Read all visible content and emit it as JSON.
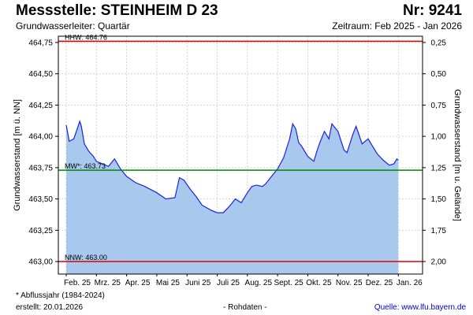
{
  "header": {
    "title": "Messstelle: STEINHEIM D 23",
    "number": "Nr: 9241",
    "subtitle": "Grundwasserleiter: Quartär",
    "period": "Zeitraum: Feb 2025 - Jan 2026"
  },
  "footer": {
    "note": "* Abflussjahr (1984-2024)",
    "created": "erstellt:  20.01.2026",
    "raw": "- Rohdaten -",
    "source": "Quelle:  www.lfu.bayern.de"
  },
  "colors": {
    "fill": "#a8c8ee",
    "line": "#1e22dc",
    "hhw": "#e00000",
    "nnw": "#e00000",
    "mw": "#008800",
    "grid": "#cccccc"
  },
  "chart_data": {
    "type": "area",
    "ylabel": "Grundwasserstand [m ü. NN]",
    "y2label": "Grundwasserstand [m u. Gelände]",
    "ylim": [
      462.9,
      464.8
    ],
    "yticks": [
      "464,75",
      "464,50",
      "464,25",
      "464,00",
      "463,75",
      "463,50",
      "463,25",
      "463,00"
    ],
    "ytick_values": [
      464.75,
      464.5,
      464.25,
      464.0,
      463.75,
      463.5,
      463.25,
      463.0
    ],
    "y2ticks": [
      "0,25",
      "0,50",
      "0,75",
      "1,00",
      "1,25",
      "1,50",
      "1,75",
      "2,00"
    ],
    "y2tick_values": [
      0.25,
      0.5,
      0.75,
      1.0,
      1.25,
      1.5,
      1.75,
      2.0
    ],
    "x_categories": [
      "Feb. 25",
      "Mrz. 25",
      "Apr. 25",
      "Mai 25",
      "Juni 25",
      "Juli 25",
      "Aug. 25",
      "Sept. 25",
      "Okt. 25",
      "Nov. 25",
      "Dez. 25",
      "Jan. 26"
    ],
    "reference_lines": [
      {
        "label": "HHW: 464.76",
        "value": 464.76,
        "color_key": "hhw"
      },
      {
        "label": "MW*: 463.73",
        "value": 463.73,
        "color_key": "mw"
      },
      {
        "label": "NNW: 463.00",
        "value": 463.0,
        "color_key": "nnw"
      }
    ],
    "series": [
      {
        "x": [
          0,
          0.1,
          0.25,
          0.45,
          0.5,
          0.6,
          0.75,
          0.9,
          1.0,
          1.2,
          1.4,
          1.6,
          1.65,
          1.8,
          2.0,
          2.3,
          2.6,
          3.0,
          3.3,
          3.6,
          3.75,
          3.9,
          4.1,
          4.3,
          4.5,
          4.8,
          5.0,
          5.2,
          5.4,
          5.6,
          5.8,
          6.0,
          6.15,
          6.3,
          6.5,
          6.6,
          6.8,
          7.0,
          7.2,
          7.4,
          7.5,
          7.6,
          7.7,
          7.8,
          8.0,
          8.2,
          8.3,
          8.4,
          8.55,
          8.7,
          8.8,
          9.0,
          9.2,
          9.3,
          9.5,
          9.6,
          9.8,
          10.0,
          10.1,
          10.3,
          10.5,
          10.7,
          10.85,
          10.95,
          11.0
        ],
        "y": [
          464.09,
          463.96,
          463.98,
          464.12,
          464.08,
          463.94,
          463.88,
          463.84,
          463.8,
          463.78,
          463.76,
          463.82,
          463.8,
          463.74,
          463.68,
          463.63,
          463.6,
          463.55,
          463.5,
          463.51,
          463.67,
          463.65,
          463.58,
          463.52,
          463.45,
          463.41,
          463.39,
          463.39,
          463.44,
          463.5,
          463.47,
          463.55,
          463.6,
          463.61,
          463.6,
          463.62,
          463.68,
          463.74,
          463.83,
          463.98,
          464.1,
          464.06,
          463.95,
          463.92,
          463.84,
          463.8,
          463.88,
          463.95,
          464.04,
          463.98,
          464.1,
          464.04,
          463.89,
          463.87,
          464.02,
          464.08,
          463.94,
          463.98,
          463.94,
          463.86,
          463.81,
          463.77,
          463.78,
          463.82,
          463.81
        ]
      }
    ]
  }
}
